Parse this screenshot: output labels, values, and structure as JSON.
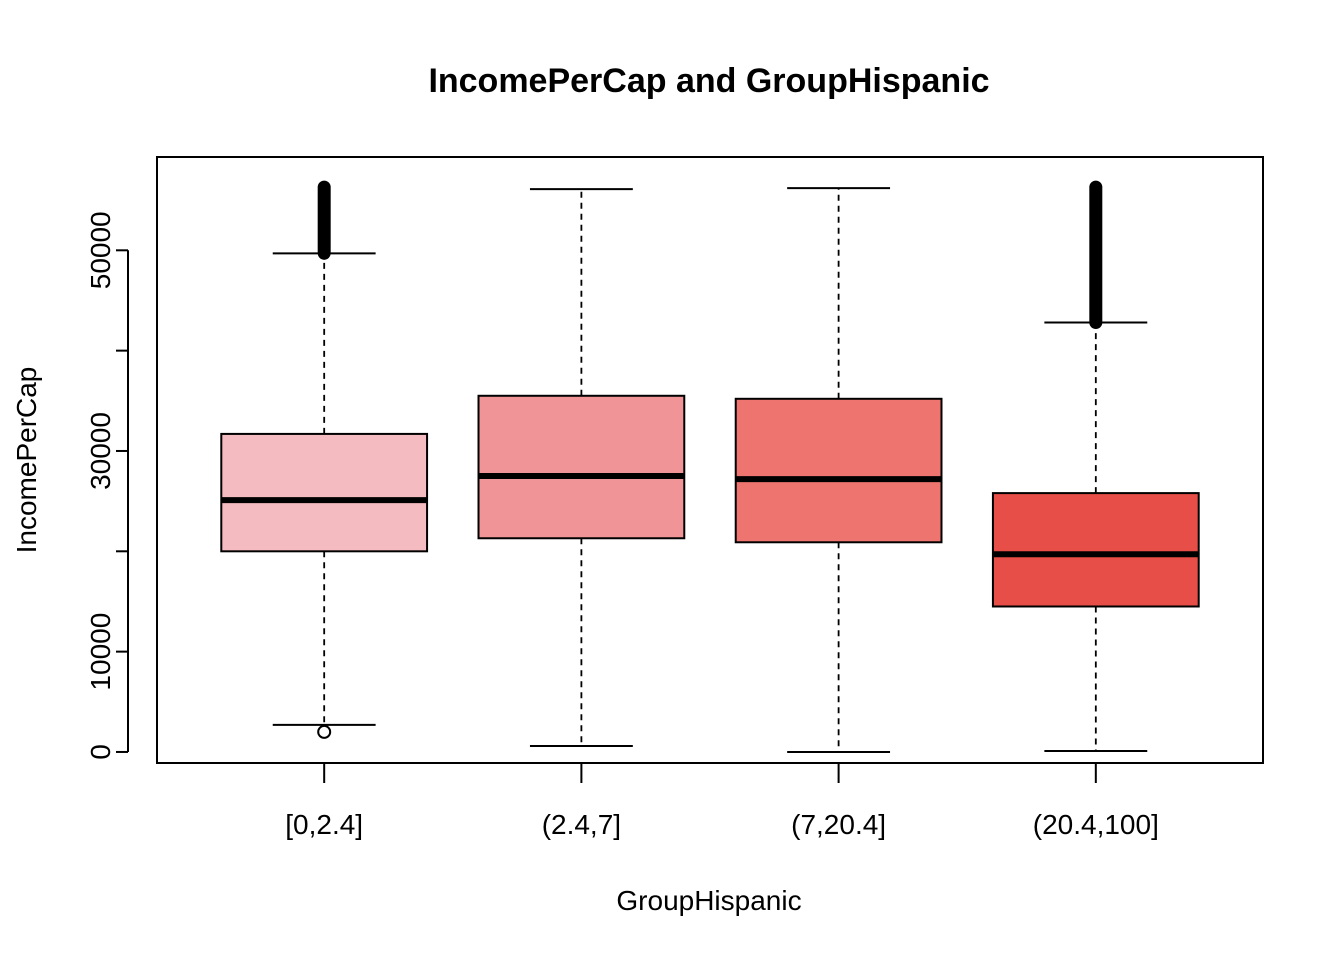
{
  "chart_data": {
    "type": "boxplot",
    "title": "IncomePerCap and GroupHispanic",
    "xlabel": "GroupHispanic",
    "ylabel": "IncomePerCap",
    "ylim": [
      -1100,
      59300
    ],
    "yticks": [
      0,
      10000,
      20000,
      30000,
      40000,
      50000,
      60000
    ],
    "ytick_labels": [
      "0",
      "10000",
      "",
      "30000",
      "",
      "50000",
      ""
    ],
    "grid": false,
    "legend": "none",
    "categories": [
      "[0,2.4]",
      "(2.4,7]",
      "(7,20.4]",
      "(20.4,100]"
    ],
    "boxes": [
      {
        "whisker_low": 2700,
        "q1": 20000,
        "median": 25100,
        "q3": 31700,
        "whisker_high": 49700,
        "color": "#F4BCC0",
        "outliers_high_range": [
          49700,
          56300
        ],
        "outliers_low": [
          2000
        ]
      },
      {
        "whisker_low": 600,
        "q1": 21300,
        "median": 27500,
        "q3": 35500,
        "whisker_high": 56100,
        "color": "#F09498",
        "outliers_high_range": null,
        "outliers_low": []
      },
      {
        "whisker_low": 0,
        "q1": 20900,
        "median": 27200,
        "q3": 35200,
        "whisker_high": 56200,
        "color": "#EE7470",
        "outliers_high_range": null,
        "outliers_low": []
      },
      {
        "whisker_low": 100,
        "q1": 14500,
        "median": 19700,
        "q3": 25800,
        "whisker_high": 42800,
        "color": "#E84E48",
        "outliers_high_range": [
          42800,
          56300
        ],
        "outliers_low": []
      }
    ]
  }
}
